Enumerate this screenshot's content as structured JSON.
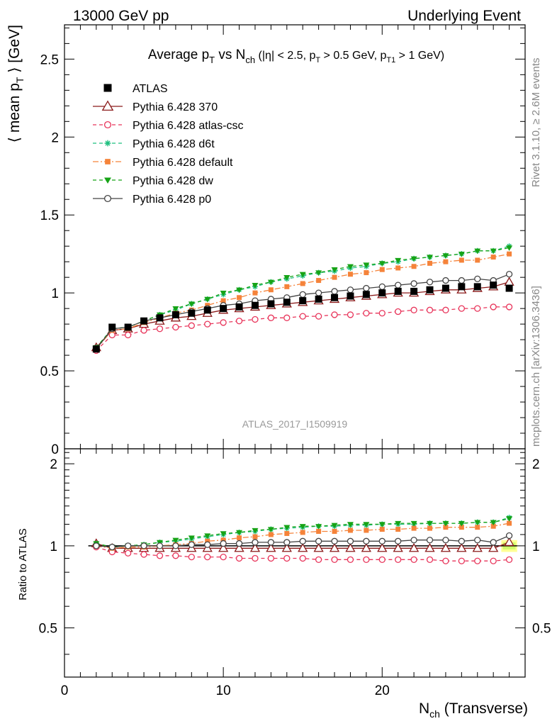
{
  "header": {
    "left": "13000 GeV pp",
    "right": "Underlying Event"
  },
  "main_title": "Average p_T vs N_ch (|η| < 2.5, p_T > 0.5 GeV, p_T1 > 1 GeV)",
  "side_labels": {
    "rivet": "Rivet 3.1.10, ≥ 2.6M events",
    "mcplots": "mcplots.cern.ch [arXiv:1306.3436]"
  },
  "watermark": "ATLAS_2017_I1509919",
  "colors": {
    "ATLAS": "#000000",
    "p370": "#8b1a1a",
    "atlascsc": "#e8345a",
    "d6t": "#1fbf7f",
    "default": "#f5833a",
    "dw": "#16a316",
    "p0": "#444444",
    "band": "#ccff66"
  },
  "chart_data": [
    {
      "type": "line",
      "ylabel": "⟨ mean p_T ⟩ [GeV]",
      "ylim": [
        0,
        2.72
      ],
      "yticks": [
        "0",
        "0.5",
        "1",
        "1.5",
        "2",
        "2.5"
      ],
      "x": [
        2,
        3,
        4,
        5,
        6,
        7,
        8,
        9,
        10,
        11,
        12,
        13,
        14,
        15,
        16,
        17,
        18,
        19,
        20,
        21,
        22,
        23,
        24,
        25,
        26,
        27,
        28
      ],
      "legend": [
        "ATLAS",
        "Pythia 6.428 370",
        "Pythia 6.428 atlas-csc",
        "Pythia 6.428 d6t",
        "Pythia 6.428 default",
        "Pythia 6.428 dw",
        "Pythia 6.428 p0"
      ],
      "series": [
        {
          "name": "ATLAS",
          "values": [
            0.64,
            0.78,
            0.78,
            0.82,
            0.84,
            0.86,
            0.87,
            0.89,
            0.9,
            0.91,
            0.92,
            0.93,
            0.94,
            0.95,
            0.96,
            0.97,
            0.98,
            0.99,
            1.0,
            1.01,
            1.01,
            1.02,
            1.03,
            1.04,
            1.04,
            1.05,
            1.03
          ]
        },
        {
          "name": "Pythia 6.428 370",
          "values": [
            0.65,
            0.76,
            0.77,
            0.8,
            0.82,
            0.84,
            0.85,
            0.87,
            0.89,
            0.9,
            0.91,
            0.92,
            0.93,
            0.94,
            0.95,
            0.96,
            0.97,
            0.98,
            0.99,
            1.0,
            1.0,
            1.01,
            1.02,
            1.02,
            1.03,
            1.04,
            1.07
          ]
        },
        {
          "name": "Pythia 6.428 atlas-csc",
          "values": [
            0.63,
            0.73,
            0.73,
            0.76,
            0.77,
            0.78,
            0.79,
            0.8,
            0.81,
            0.82,
            0.83,
            0.84,
            0.84,
            0.85,
            0.85,
            0.86,
            0.86,
            0.87,
            0.87,
            0.88,
            0.89,
            0.89,
            0.89,
            0.9,
            0.9,
            0.91,
            0.91
          ]
        },
        {
          "name": "Pythia 6.428 d6t",
          "values": [
            0.65,
            0.77,
            0.78,
            0.82,
            0.86,
            0.89,
            0.93,
            0.96,
            0.99,
            1.02,
            1.04,
            1.07,
            1.09,
            1.11,
            1.13,
            1.14,
            1.16,
            1.17,
            1.19,
            1.2,
            1.22,
            1.23,
            1.24,
            1.25,
            1.27,
            1.27,
            1.3
          ]
        },
        {
          "name": "Pythia 6.428 default",
          "values": [
            0.64,
            0.76,
            0.77,
            0.81,
            0.84,
            0.87,
            0.89,
            0.92,
            0.95,
            0.97,
            1.0,
            1.02,
            1.04,
            1.06,
            1.08,
            1.1,
            1.12,
            1.13,
            1.15,
            1.16,
            1.17,
            1.19,
            1.2,
            1.21,
            1.21,
            1.23,
            1.25
          ]
        },
        {
          "name": "Pythia 6.428 dw",
          "values": [
            0.65,
            0.77,
            0.78,
            0.82,
            0.86,
            0.9,
            0.93,
            0.96,
            1.0,
            1.02,
            1.05,
            1.07,
            1.1,
            1.12,
            1.13,
            1.15,
            1.17,
            1.18,
            1.19,
            1.21,
            1.22,
            1.23,
            1.24,
            1.25,
            1.27,
            1.27,
            1.29
          ]
        },
        {
          "name": "Pythia 6.428 p0",
          "values": [
            0.64,
            0.77,
            0.78,
            0.82,
            0.84,
            0.86,
            0.88,
            0.9,
            0.92,
            0.93,
            0.95,
            0.96,
            0.97,
            0.99,
            1.0,
            1.01,
            1.02,
            1.03,
            1.04,
            1.05,
            1.06,
            1.07,
            1.08,
            1.08,
            1.09,
            1.08,
            1.12
          ]
        }
      ]
    },
    {
      "type": "line",
      "ylabel": "Ratio to ATLAS",
      "xlabel": "N_ch (Transverse)",
      "xlim": [
        0,
        29
      ],
      "ylim": [
        0.33,
        2.27
      ],
      "yticks": [
        "0.5",
        "1",
        "2"
      ],
      "xticks": [
        "0",
        "10",
        "20"
      ],
      "x": [
        2,
        3,
        4,
        5,
        6,
        7,
        8,
        9,
        10,
        11,
        12,
        13,
        14,
        15,
        16,
        17,
        18,
        19,
        20,
        21,
        22,
        23,
        24,
        25,
        26,
        27,
        28
      ],
      "series": [
        {
          "name": "Pythia 6.428 370",
          "values": [
            1.02,
            0.98,
            0.98,
            0.98,
            0.98,
            0.98,
            0.98,
            0.98,
            0.98,
            0.98,
            0.98,
            0.98,
            0.98,
            0.98,
            0.98,
            0.98,
            0.98,
            0.98,
            0.98,
            0.98,
            0.98,
            0.98,
            0.98,
            0.98,
            0.98,
            0.98,
            1.03
          ]
        },
        {
          "name": "Pythia 6.428 atlas-csc",
          "values": [
            0.99,
            0.95,
            0.94,
            0.93,
            0.92,
            0.92,
            0.91,
            0.91,
            0.91,
            0.9,
            0.9,
            0.9,
            0.9,
            0.9,
            0.89,
            0.89,
            0.89,
            0.89,
            0.89,
            0.89,
            0.89,
            0.89,
            0.88,
            0.88,
            0.88,
            0.88,
            0.89
          ]
        },
        {
          "name": "Pythia 6.428 d6t",
          "values": [
            1.02,
            0.99,
            1.0,
            1.01,
            1.03,
            1.04,
            1.06,
            1.08,
            1.1,
            1.12,
            1.13,
            1.15,
            1.16,
            1.17,
            1.18,
            1.18,
            1.19,
            1.19,
            1.2,
            1.2,
            1.2,
            1.21,
            1.21,
            1.21,
            1.22,
            1.22,
            1.27
          ]
        },
        {
          "name": "Pythia 6.428 default",
          "values": [
            1.0,
            0.98,
            0.99,
            0.99,
            1.0,
            1.01,
            1.02,
            1.04,
            1.05,
            1.07,
            1.08,
            1.1,
            1.11,
            1.12,
            1.13,
            1.13,
            1.14,
            1.14,
            1.15,
            1.15,
            1.16,
            1.16,
            1.17,
            1.17,
            1.17,
            1.18,
            1.21
          ]
        },
        {
          "name": "Pythia 6.428 dw",
          "values": [
            1.02,
            0.99,
            1.0,
            1.01,
            1.03,
            1.05,
            1.07,
            1.09,
            1.11,
            1.12,
            1.14,
            1.15,
            1.17,
            1.18,
            1.18,
            1.19,
            1.2,
            1.2,
            1.2,
            1.21,
            1.21,
            1.21,
            1.21,
            1.21,
            1.22,
            1.22,
            1.26
          ]
        },
        {
          "name": "Pythia 6.428 p0",
          "values": [
            1.0,
            0.99,
            1.0,
            1.0,
            1.0,
            1.0,
            1.01,
            1.01,
            1.02,
            1.02,
            1.03,
            1.03,
            1.03,
            1.04,
            1.04,
            1.04,
            1.04,
            1.04,
            1.04,
            1.04,
            1.05,
            1.05,
            1.05,
            1.04,
            1.05,
            1.03,
            1.09
          ]
        }
      ]
    }
  ]
}
